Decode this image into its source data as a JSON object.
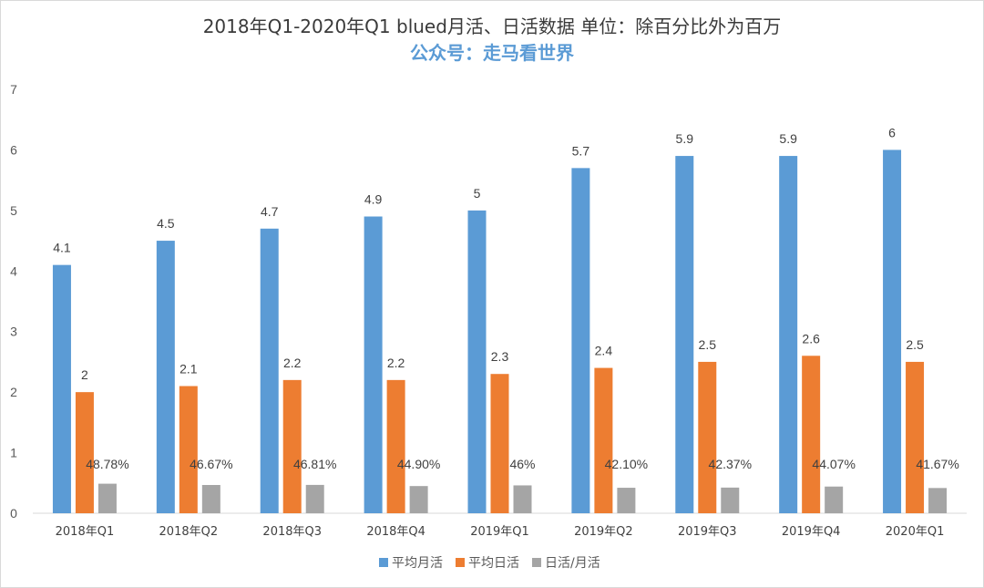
{
  "chart_data": {
    "type": "bar",
    "title": "2018年Q1-2020年Q1 blued月活、日活数据  单位：除百分比外为百万",
    "subtitle": "公众号：走马看世界",
    "categories": [
      "2018年Q1",
      "2018年Q2",
      "2018年Q3",
      "2018年Q4",
      "2019年Q1",
      "2019年Q2",
      "2019年Q3",
      "2019年Q4",
      "2020年Q1"
    ],
    "ylim": [
      0,
      7
    ],
    "yticks": [
      "0",
      "1",
      "2",
      "3",
      "4",
      "5",
      "6",
      "7"
    ],
    "grid": false,
    "legend_position": "bottom",
    "series": [
      {
        "name": "平均月活",
        "color": "#5b9bd5",
        "values": [
          4.1,
          4.5,
          4.7,
          4.9,
          5,
          5.7,
          5.9,
          5.9,
          6
        ],
        "labels": [
          "4.1",
          "4.5",
          "4.7",
          "4.9",
          "5",
          "5.7",
          "5.9",
          "5.9",
          "6"
        ]
      },
      {
        "name": "平均日活",
        "color": "#ed7d31",
        "values": [
          2,
          2.1,
          2.2,
          2.2,
          2.3,
          2.4,
          2.5,
          2.6,
          2.5
        ],
        "labels": [
          "2",
          "2.1",
          "2.2",
          "2.2",
          "2.3",
          "2.4",
          "2.5",
          "2.6",
          "2.5"
        ]
      },
      {
        "name": "日活/月活",
        "color": "#a5a5a5",
        "values": [
          0.4878,
          0.4667,
          0.4681,
          0.449,
          0.46,
          0.421,
          0.4237,
          0.4407,
          0.4167
        ],
        "labels": [
          "48.78%",
          "46.67%",
          "46.81%",
          "44.90%",
          "46%",
          "42.10%",
          "42.37%",
          "44.07%",
          "41.67%"
        ]
      }
    ]
  }
}
